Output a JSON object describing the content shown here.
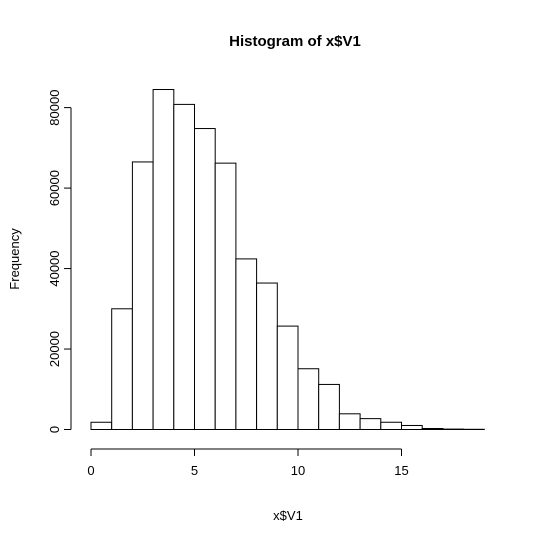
{
  "chart_data": {
    "type": "bar",
    "title": "Histogram of x$V1",
    "xlabel": "x$V1",
    "ylabel": "Frequency",
    "bin_width": 1,
    "bins": [
      {
        "start": 0,
        "end": 1,
        "count": 1800
      },
      {
        "start": 1,
        "end": 2,
        "count": 30000
      },
      {
        "start": 2,
        "end": 3,
        "count": 66500
      },
      {
        "start": 3,
        "end": 4,
        "count": 84500
      },
      {
        "start": 4,
        "end": 5,
        "count": 80800
      },
      {
        "start": 5,
        "end": 6,
        "count": 74800
      },
      {
        "start": 6,
        "end": 7,
        "count": 66200
      },
      {
        "start": 7,
        "end": 8,
        "count": 42400
      },
      {
        "start": 8,
        "end": 9,
        "count": 36400
      },
      {
        "start": 9,
        "end": 10,
        "count": 25700
      },
      {
        "start": 10,
        "end": 11,
        "count": 15100
      },
      {
        "start": 11,
        "end": 12,
        "count": 11200
      },
      {
        "start": 12,
        "end": 13,
        "count": 3900
      },
      {
        "start": 13,
        "end": 14,
        "count": 2700
      },
      {
        "start": 14,
        "end": 15,
        "count": 1800
      },
      {
        "start": 15,
        "end": 16,
        "count": 1000
      },
      {
        "start": 16,
        "end": 17,
        "count": 250
      },
      {
        "start": 17,
        "end": 18,
        "count": 100
      },
      {
        "start": 18,
        "end": 19,
        "count": 50
      }
    ],
    "x_ticks": [
      "0",
      "5",
      "10",
      "15"
    ],
    "y_ticks": [
      "0",
      "20000",
      "40000",
      "60000",
      "80000"
    ],
    "xlim": [
      0,
      19
    ],
    "ylim": [
      0,
      85000
    ],
    "grid": false,
    "colors": {
      "bar_fill": "#ffffff",
      "bar_stroke": "#000000"
    }
  }
}
